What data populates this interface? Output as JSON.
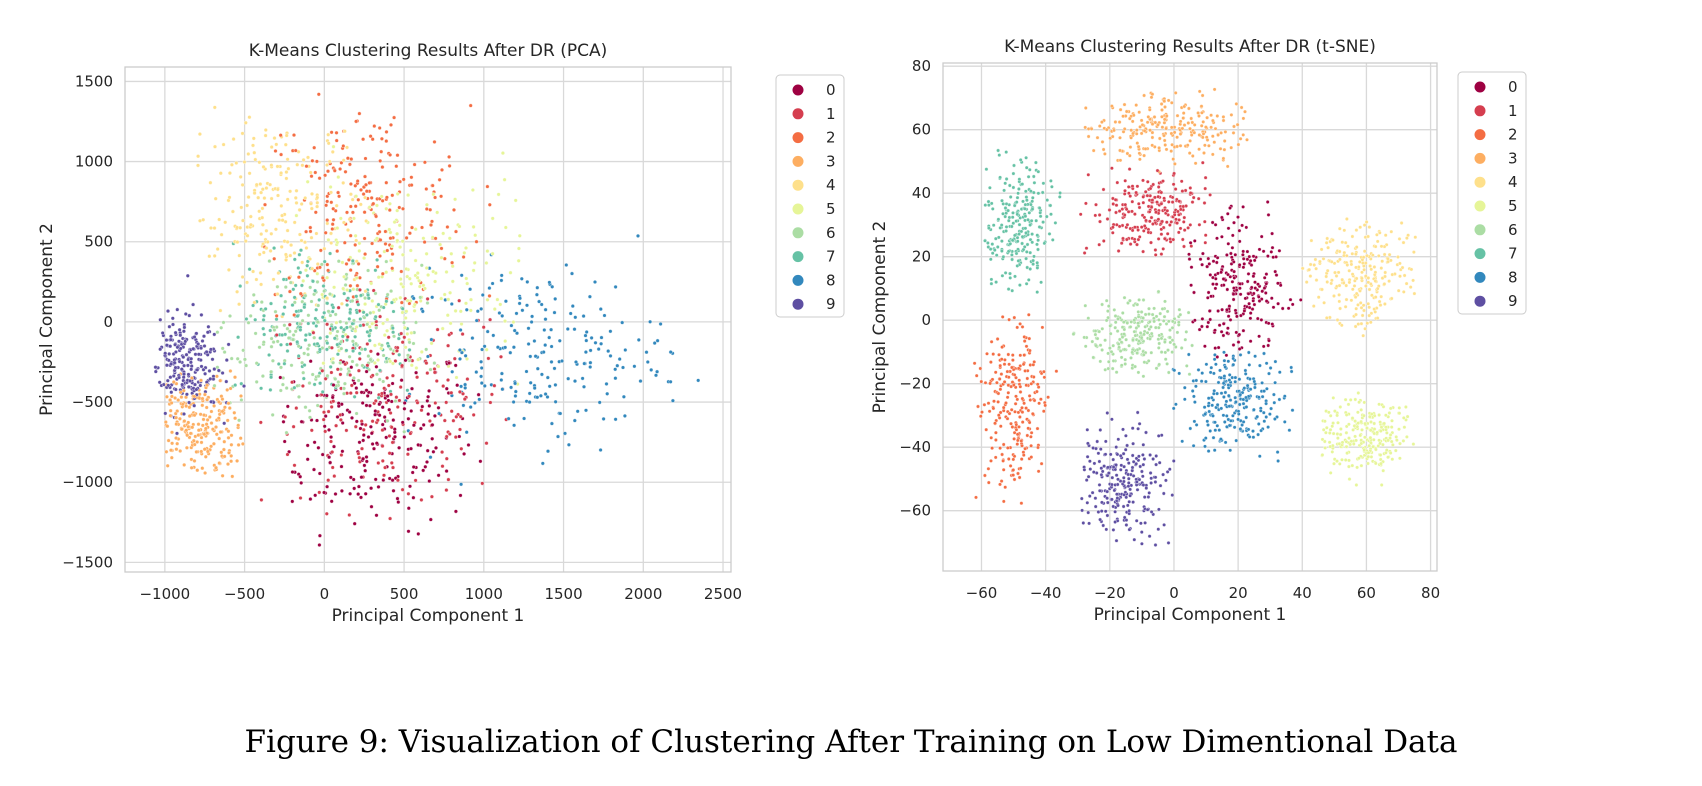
{
  "figure": {
    "caption": "Figure 9: Visualization of Clustering After Training on Low Dimentional Data"
  },
  "palette": [
    "#9e0142",
    "#d53e4f",
    "#f46d43",
    "#fdae61",
    "#fee08b",
    "#e6f598",
    "#abdda4",
    "#66c2a5",
    "#3288bd",
    "#5e4fa2"
  ],
  "chart_data": [
    {
      "type": "scatter",
      "title": "K-Means Clustering Results After DR (PCA)",
      "xlabel": "Principal Component 1",
      "ylabel": "Principal Component 2",
      "xlim": [
        -1250,
        2550
      ],
      "ylim": [
        -1560,
        1590
      ],
      "xticks": [
        -1000,
        -500,
        0,
        500,
        1000,
        1500,
        2000,
        2500
      ],
      "yticks": [
        -1500,
        -1000,
        -500,
        0,
        500,
        1000,
        1500
      ],
      "grid": true,
      "legend": {
        "placement": "outside-right",
        "entries": [
          "0",
          "1",
          "2",
          "3",
          "4",
          "5",
          "6",
          "7",
          "8",
          "9"
        ]
      },
      "clusters": [
        {
          "label": "0",
          "center": [
            300,
            -700
          ],
          "spread": [
            320,
            300
          ],
          "approx_extent": {
            "x": [
              -300,
              1000
            ],
            "y": [
              -1430,
              -200
            ]
          }
        },
        {
          "label": "1",
          "center": [
            400,
            -500
          ],
          "spread": [
            400,
            330
          ],
          "approx_extent": {
            "x": [
              -400,
              1300
            ],
            "y": [
              -1300,
              200
            ]
          }
        },
        {
          "label": "2",
          "center": [
            250,
            700
          ],
          "spread": [
            330,
            320
          ],
          "approx_extent": {
            "x": [
              -400,
              1100
            ],
            "y": [
              0,
              1460
            ]
          }
        },
        {
          "label": "3",
          "center": [
            -800,
            -650
          ],
          "spread": [
            150,
            170
          ],
          "approx_extent": {
            "x": [
              -1000,
              -500
            ],
            "y": [
              -970,
              -300
            ]
          }
        },
        {
          "label": "4",
          "center": [
            -300,
            650
          ],
          "spread": [
            280,
            330
          ],
          "approx_extent": {
            "x": [
              -800,
              300
            ],
            "y": [
              0,
              1350
            ]
          }
        },
        {
          "label": "5",
          "center": [
            500,
            250
          ],
          "spread": [
            380,
            350
          ],
          "approx_extent": {
            "x": [
              -200,
              1250
            ],
            "y": [
              -400,
              1100
            ]
          }
        },
        {
          "label": "6",
          "center": [
            -50,
            -150
          ],
          "spread": [
            330,
            250
          ],
          "approx_extent": {
            "x": [
              -700,
              700
            ],
            "y": [
              -700,
              500
            ]
          }
        },
        {
          "label": "7",
          "center": [
            0,
            0
          ],
          "spread": [
            300,
            250
          ],
          "approx_extent": {
            "x": [
              -600,
              600
            ],
            "y": [
              -500,
              500
            ]
          }
        },
        {
          "label": "8",
          "center": [
            1300,
            -200
          ],
          "spread": [
            420,
            270
          ],
          "approx_extent": {
            "x": [
              500,
              2400
            ],
            "y": [
              -1150,
              850
            ]
          }
        },
        {
          "label": "9",
          "center": [
            -900,
            -250
          ],
          "spread": [
            120,
            150
          ],
          "approx_extent": {
            "x": [
              -1060,
              -500
            ],
            "y": [
              -800,
              400
            ]
          }
        }
      ]
    },
    {
      "type": "scatter",
      "title": "K-Means Clustering Results After DR (t-SNE)",
      "xlabel": "Principal Component 1",
      "ylabel": "Principal Component 2",
      "xlim": [
        -72,
        82
      ],
      "ylim": [
        -79,
        81
      ],
      "xticks": [
        -60,
        -40,
        -20,
        0,
        20,
        40,
        60,
        80
      ],
      "yticks": [
        -60,
        -40,
        -20,
        0,
        20,
        40,
        60,
        80
      ],
      "grid": true,
      "legend": {
        "placement": "outside-right",
        "entries": [
          "0",
          "1",
          "2",
          "3",
          "4",
          "5",
          "6",
          "7",
          "8",
          "9"
        ]
      },
      "clusters": [
        {
          "label": "0",
          "center": [
            20,
            10
          ],
          "spread": [
            7,
            10
          ],
          "approx_extent": {
            "x": [
              4,
              40
            ],
            "y": [
              -12,
              38
            ]
          }
        },
        {
          "label": "1",
          "center": [
            -8,
            34
          ],
          "spread": [
            9,
            7
          ],
          "approx_extent": {
            "x": [
              -30,
              12
            ],
            "y": [
              20,
              50
            ]
          }
        },
        {
          "label": "2",
          "center": [
            -50,
            -25
          ],
          "spread": [
            5,
            15
          ],
          "approx_extent": {
            "x": [
              -65,
              -35
            ],
            "y": [
              -58,
              2
            ]
          }
        },
        {
          "label": "3",
          "center": [
            -2,
            60
          ],
          "spread": [
            13,
            5
          ],
          "approx_extent": {
            "x": [
              -28,
              24
            ],
            "y": [
              42,
              73
            ]
          }
        },
        {
          "label": "4",
          "center": [
            58,
            15
          ],
          "spread": [
            9,
            8
          ],
          "approx_extent": {
            "x": [
              40,
              76
            ],
            "y": [
              -5,
              32
            ]
          }
        },
        {
          "label": "5",
          "center": [
            60,
            -36
          ],
          "spread": [
            7,
            6
          ],
          "approx_extent": {
            "x": [
              45,
              75
            ],
            "y": [
              -53,
              -22
            ]
          }
        },
        {
          "label": "6",
          "center": [
            -12,
            -5
          ],
          "spread": [
            9,
            6
          ],
          "approx_extent": {
            "x": [
              -32,
              8
            ],
            "y": [
              -20,
              10
            ]
          }
        },
        {
          "label": "7",
          "center": [
            -48,
            30
          ],
          "spread": [
            5,
            10
          ],
          "approx_extent": {
            "x": [
              -60,
              -34
            ],
            "y": [
              8,
              58
            ]
          }
        },
        {
          "label": "8",
          "center": [
            18,
            -25
          ],
          "spread": [
            8,
            8
          ],
          "approx_extent": {
            "x": [
              -5,
              40
            ],
            "y": [
              -45,
              -5
            ]
          }
        },
        {
          "label": "9",
          "center": [
            -16,
            -50
          ],
          "spread": [
            7,
            9
          ],
          "approx_extent": {
            "x": [
              -30,
              0
            ],
            "y": [
              -72,
              -28
            ]
          }
        }
      ]
    }
  ]
}
